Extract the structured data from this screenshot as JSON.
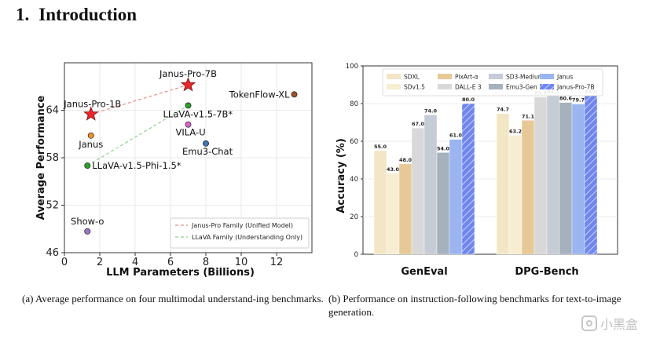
{
  "heading": {
    "number": "1.",
    "text": "Introduction"
  },
  "captions": {
    "left": "(a)  Average performance on four multimodal understand-ing benchmarks.",
    "right": "(b)  Performance on instruction-following benchmarks for text-to-image generation."
  },
  "watermark": {
    "text": "小黑盒",
    "icon": "box-logo-icon"
  },
  "chart_data": [
    {
      "type": "scatter",
      "xlabel": "LLM Parameters (Billions)",
      "ylabel": "Average Performance",
      "xlim": [
        0,
        14
      ],
      "ylim": [
        46,
        70
      ],
      "xticks": [
        0,
        2,
        4,
        6,
        8,
        10,
        12
      ],
      "yticks": [
        46,
        52,
        58,
        64
      ],
      "grid": true,
      "legend_position": "bottom-right",
      "points": [
        {
          "label": "Janus-Pro-7B",
          "x": 7.0,
          "y": 67.2,
          "color": "#e8262b",
          "marker": "star"
        },
        {
          "label": "Janus-Pro-1B",
          "x": 1.5,
          "y": 63.5,
          "color": "#e8262b",
          "marker": "star"
        },
        {
          "label": "TokenFlow-XL",
          "x": 13.0,
          "y": 66.0,
          "color": "#a0522d",
          "marker": "circle"
        },
        {
          "label": "LLaVA-v1.5-7B*",
          "x": 7.0,
          "y": 64.6,
          "color": "#2ca02c",
          "marker": "circle"
        },
        {
          "label": "VILA-U",
          "x": 7.0,
          "y": 62.2,
          "color": "#d466c8",
          "marker": "circle"
        },
        {
          "label": "Janus",
          "x": 1.5,
          "y": 60.8,
          "color": "#f28e2b",
          "marker": "circle"
        },
        {
          "label": "Emu3-Chat",
          "x": 8.0,
          "y": 59.8,
          "color": "#3f77b4",
          "marker": "circle"
        },
        {
          "label": "LLaVA-v1.5-Phi-1.5*",
          "x": 1.3,
          "y": 57.0,
          "color": "#2ca02c",
          "marker": "circle"
        },
        {
          "label": "Show-o",
          "x": 1.3,
          "y": 48.7,
          "color": "#9b76c6",
          "marker": "circle"
        }
      ],
      "series": [
        {
          "name": "Janus-Pro Family (Unified Model)",
          "color": "#e88c8c",
          "from": [
            1.5,
            63.5
          ],
          "to": [
            7.0,
            67.2
          ]
        },
        {
          "name": "LLaVA Family (Understanding Only)",
          "color": "#8fd18f",
          "from": [
            1.3,
            57.0
          ],
          "to": [
            7.0,
            64.6
          ]
        }
      ]
    },
    {
      "type": "bar",
      "ylabel": "Accuracy (%)",
      "ylim": [
        0,
        100
      ],
      "yticks": [
        0,
        20,
        40,
        60,
        80,
        100
      ],
      "categories": [
        "GenEval",
        "DPG-Bench"
      ],
      "legend_position": "top",
      "series": [
        {
          "name": "SDXL",
          "values": [
            55.0,
            74.7
          ],
          "color": "#f3e6c4",
          "hatch": false
        },
        {
          "name": "SDv1.5",
          "values": [
            43.0,
            63.2
          ],
          "color": "#f6edd3",
          "hatch": false
        },
        {
          "name": "PixArt-α",
          "values": [
            48.0,
            71.1
          ],
          "color": "#e7c997",
          "hatch": false
        },
        {
          "name": "DALL-E 3",
          "values": [
            67.0,
            83.5
          ],
          "color": "#d8d8d8",
          "hatch": false
        },
        {
          "name": "SD3-Medium",
          "values": [
            74.0,
            84.1
          ],
          "color": "#c5ccd6",
          "hatch": false
        },
        {
          "name": "Emu3-Gen",
          "values": [
            54.0,
            80.6
          ],
          "color": "#a6b1be",
          "hatch": false
        },
        {
          "name": "Janus",
          "values": [
            61.0,
            79.7
          ],
          "color": "#9ab5f0",
          "hatch": false
        },
        {
          "name": "Janus-Pro-7B",
          "values": [
            80.0,
            84.2
          ],
          "color": "#6f86ee",
          "hatch": true
        }
      ]
    }
  ]
}
